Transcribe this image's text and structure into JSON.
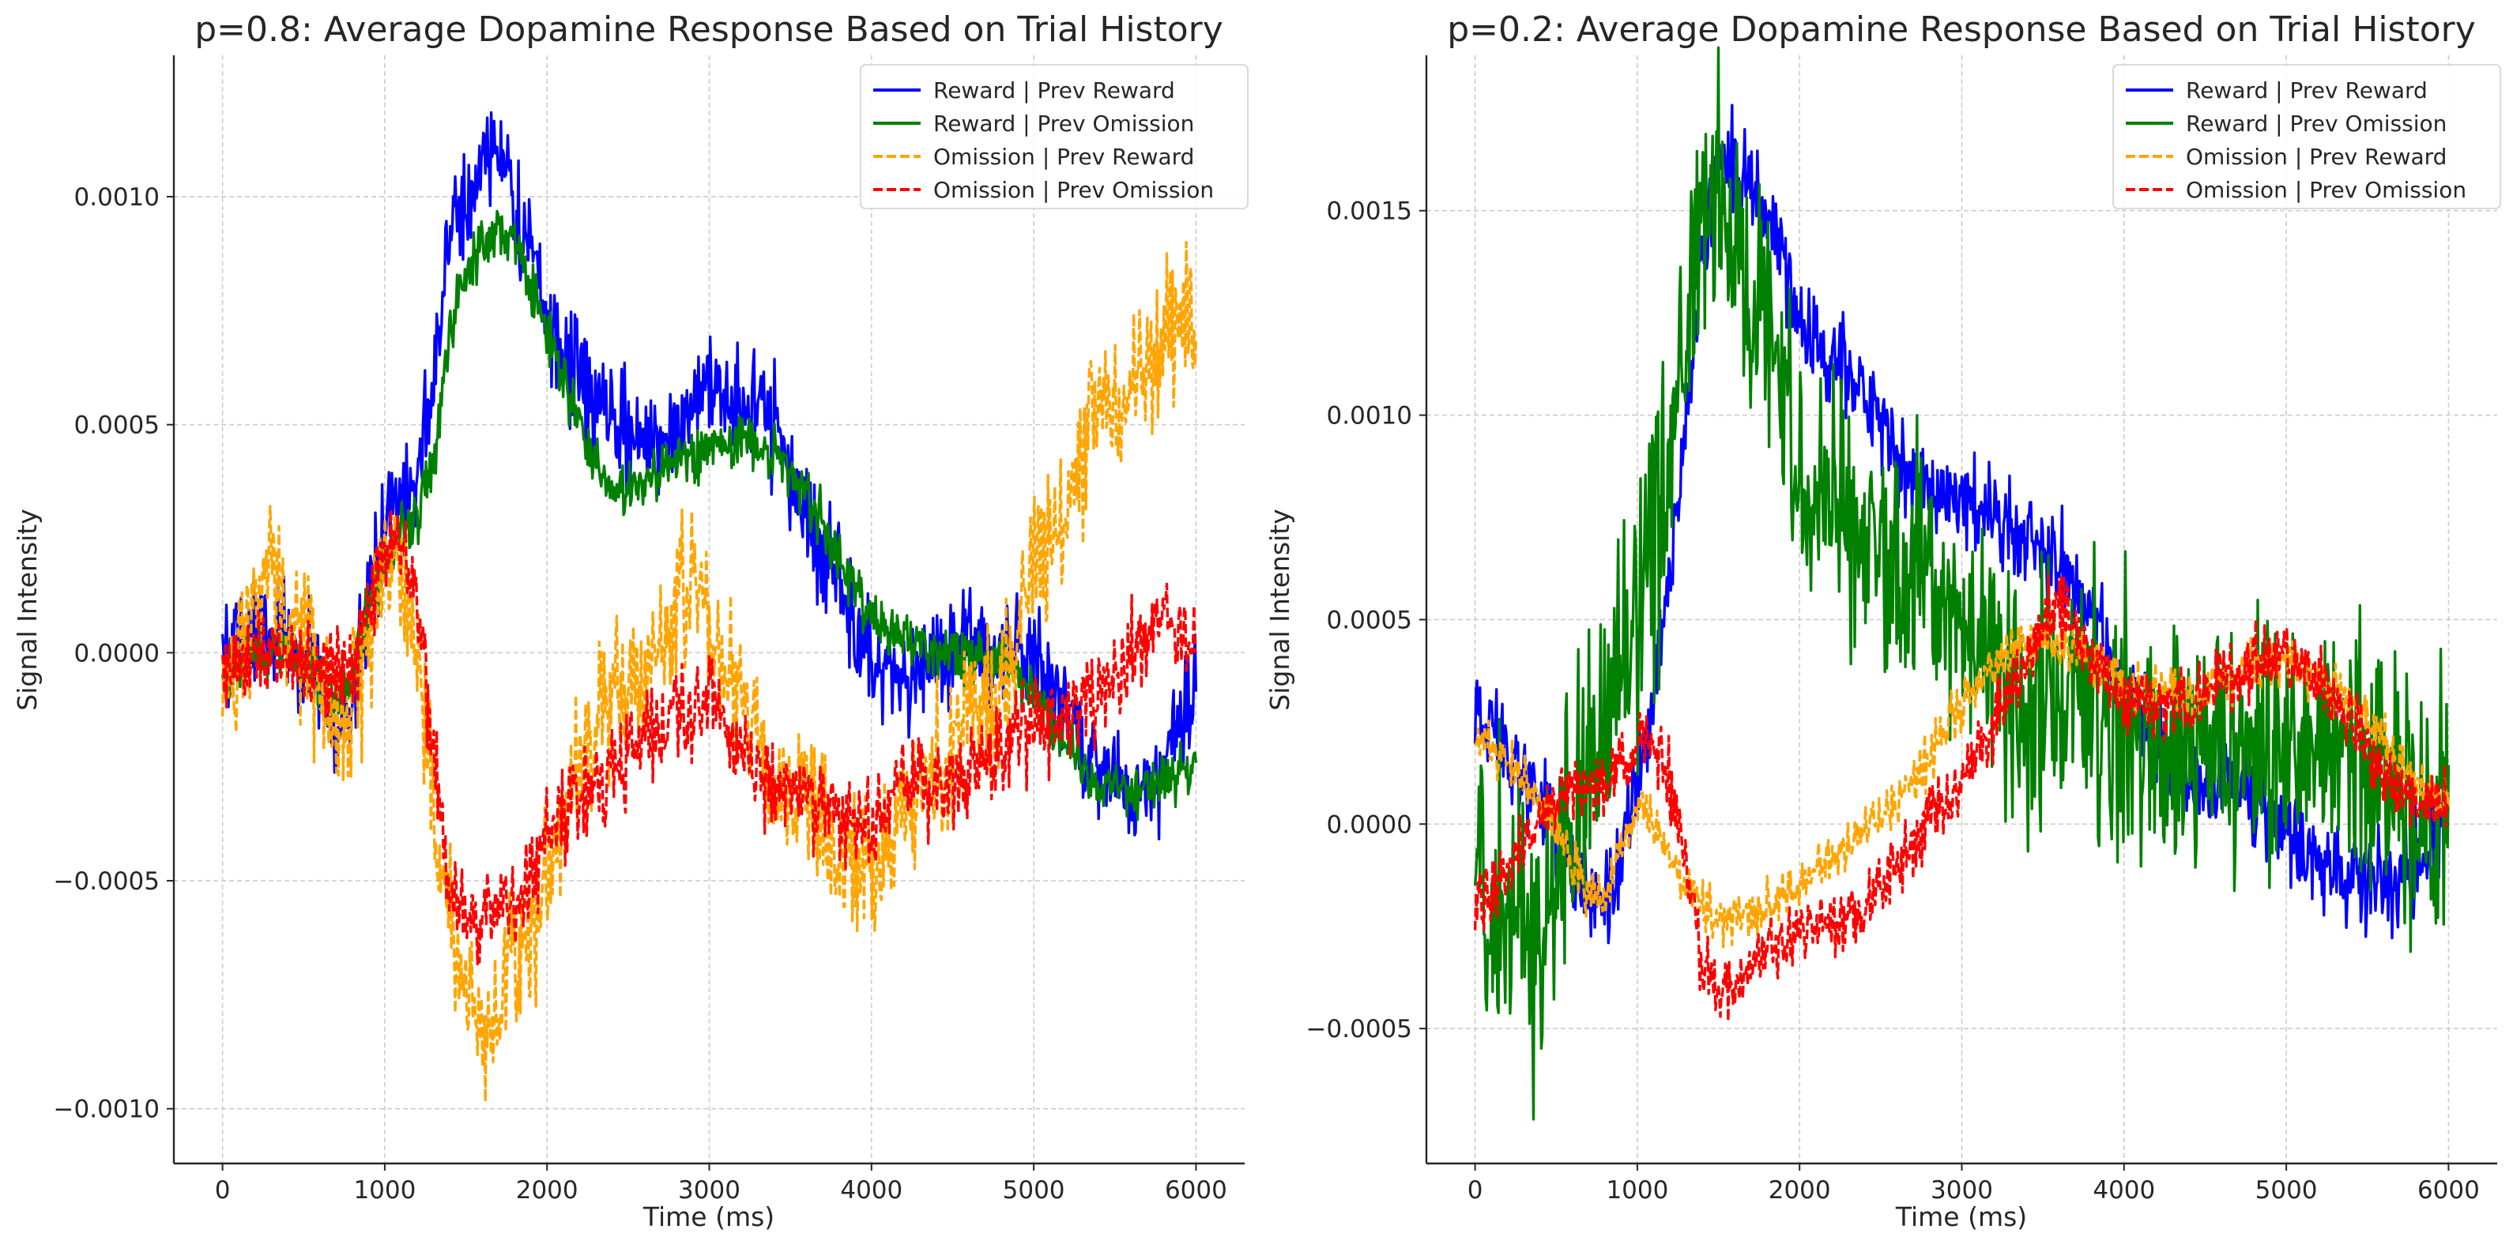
{
  "chart_data": [
    {
      "type": "line",
      "title": "p=0.8: Average Dopamine Response Based on Trial History",
      "xlabel": "Time (ms)",
      "ylabel": "Signal Intensity",
      "xlim": [
        -300,
        6300
      ],
      "ylim": [
        -0.00112,
        0.00131
      ],
      "xticks": [
        0,
        1000,
        2000,
        3000,
        4000,
        5000,
        6000
      ],
      "xtick_labels": [
        "0",
        "1000",
        "2000",
        "3000",
        "4000",
        "5000",
        "6000"
      ],
      "yticks": [
        -0.001,
        -0.0005,
        0,
        0.0005,
        0.001
      ],
      "ytick_labels": [
        "−0.0010",
        "−0.0005",
        "0.0000",
        "0.0005",
        "0.0010"
      ],
      "grid": true,
      "legend_position": "top-right",
      "series": [
        {
          "name": "Reward | Prev Reward",
          "color": "#0000ff",
          "dashed": false,
          "noise": 6e-05,
          "x": [
            0,
            200,
            400,
            600,
            700,
            800,
            900,
            1000,
            1100,
            1200,
            1300,
            1400,
            1500,
            1600,
            1700,
            1800,
            1900,
            2000,
            2200,
            2400,
            2600,
            2800,
            3000,
            3200,
            3400,
            3500,
            3600,
            3800,
            4000,
            4200,
            4400,
            4600,
            4800,
            5000,
            5200,
            5400,
            5600,
            5800,
            6000
          ],
          "y": [
            0,
            5e-05,
            5e-05,
            -5e-05,
            -0.0002,
            -0.0001,
            0.0001,
            0.0003,
            0.00033,
            0.0004,
            0.0006,
            0.0009,
            0.001,
            0.00105,
            0.00115,
            0.00095,
            0.0009,
            0.0007,
            0.0006,
            0.0005,
            0.00045,
            0.0005,
            0.0006,
            0.00055,
            0.0005,
            0.0004,
            0.0003,
            0.00015,
            -3e-05,
            -0.0001,
            0,
            3e-05,
            0,
            0,
            -0.00015,
            -0.00025,
            -0.0003,
            -0.00025,
            -5e-05
          ]
        },
        {
          "name": "Reward | Prev Omission",
          "color": "#008000",
          "dashed": false,
          "noise": 3e-05,
          "x": [
            0,
            200,
            400,
            600,
            700,
            800,
            900,
            1000,
            1100,
            1200,
            1300,
            1400,
            1500,
            1600,
            1700,
            1800,
            1900,
            2000,
            2200,
            2400,
            2600,
            2800,
            3000,
            3200,
            3400,
            3500,
            3600,
            3800,
            4000,
            4200,
            4400,
            4600,
            4800,
            5000,
            5200,
            5400,
            5600,
            5800,
            6000
          ],
          "y": [
            -5e-05,
            0,
            0,
            -5e-05,
            -0.0001,
            -5e-05,
            0.0001,
            0.0002,
            0.00028,
            0.0003,
            0.0004,
            0.0007,
            0.00085,
            0.0009,
            0.00093,
            0.0009,
            0.0008,
            0.0007,
            0.0005,
            0.00035,
            0.00037,
            0.00042,
            0.00045,
            0.00047,
            0.00043,
            0.0004,
            0.00035,
            0.0002,
            8e-05,
            3e-05,
            0,
            0,
            -2e-05,
            -8e-05,
            -0.0002,
            -0.00028,
            -0.0003,
            -0.00028,
            -0.00025
          ]
        },
        {
          "name": "Omission | Prev Reward",
          "color": "#ffa500",
          "dashed": true,
          "noise": 8e-05,
          "x": [
            0,
            200,
            300,
            400,
            500,
            600,
            700,
            800,
            900,
            1000,
            1100,
            1200,
            1300,
            1400,
            1500,
            1600,
            1700,
            1800,
            1900,
            2000,
            2200,
            2400,
            2600,
            2800,
            2900,
            3000,
            3200,
            3400,
            3600,
            3800,
            4000,
            4200,
            4400,
            4600,
            4800,
            5000,
            5200,
            5400,
            5600,
            5800,
            6000
          ],
          "y": [
            -0.0001,
            0.0001,
            0.0002,
            0,
            5e-05,
            -0.0001,
            -0.0002,
            -0.0001,
            5e-05,
            0.0002,
            0.0002,
            0,
            -0.00035,
            -0.0006,
            -0.00075,
            -0.0008,
            -0.0008,
            -0.00065,
            -0.0006,
            -0.0005,
            -0.0002,
            -0.0001,
            -5e-05,
            0.0001,
            0.0002,
            5e-05,
            -0.0001,
            -0.0003,
            -0.0003,
            -0.00045,
            -0.0005,
            -0.00035,
            -0.00025,
            -0.00015,
            -0.0001,
            0.0002,
            0.0003,
            0.00055,
            0.00055,
            0.0007,
            0.00075
          ]
        },
        {
          "name": "Omission | Prev Omission",
          "color": "#ff0000",
          "dashed": true,
          "noise": 5e-05,
          "x": [
            0,
            200,
            400,
            600,
            800,
            900,
            1000,
            1100,
            1200,
            1300,
            1400,
            1500,
            1600,
            1700,
            1800,
            1900,
            2000,
            2200,
            2400,
            2600,
            2800,
            3000,
            3200,
            3400,
            3600,
            3800,
            4000,
            4200,
            4400,
            4600,
            4800,
            5000,
            5200,
            5400,
            5600,
            5800,
            6000
          ],
          "y": [
            -5e-05,
            0,
            0,
            -3e-05,
            -5e-05,
            0.0001,
            0.00022,
            0.00025,
            0.0001,
            -0.0002,
            -0.0005,
            -0.0006,
            -0.0006,
            -0.00055,
            -0.00055,
            -0.0005,
            -0.0004,
            -0.0003,
            -0.00025,
            -0.0002,
            -0.00013,
            -0.0001,
            -0.0002,
            -0.0003,
            -0.0003,
            -0.00035,
            -0.0004,
            -0.00028,
            -0.0003,
            -0.0003,
            -0.0002,
            -0.00015,
            -0.00015,
            -0.0001,
            0,
            0.0001,
            0
          ]
        }
      ]
    },
    {
      "type": "line",
      "title": "p=0.2: Average Dopamine Response Based on Trial History",
      "xlabel": "Time (ms)",
      "ylabel": "Signal Intensity",
      "xlim": [
        -300,
        6300
      ],
      "ylim": [
        -0.00083,
        0.00188
      ],
      "xticks": [
        0,
        1000,
        2000,
        3000,
        4000,
        5000,
        6000
      ],
      "xtick_labels": [
        "0",
        "1000",
        "2000",
        "3000",
        "4000",
        "5000",
        "6000"
      ],
      "yticks": [
        -0.0005,
        0,
        0.0005,
        0.001,
        0.0015
      ],
      "ytick_labels": [
        "−0.0005",
        "0.0000",
        "0.0005",
        "0.0010",
        "0.0015"
      ],
      "grid": true,
      "legend_position": "top-right",
      "series": [
        {
          "name": "Reward | Prev Reward",
          "color": "#0000ff",
          "dashed": false,
          "noise": 6e-05,
          "x": [
            0,
            100,
            200,
            300,
            400,
            500,
            600,
            700,
            800,
            900,
            1000,
            1100,
            1200,
            1300,
            1400,
            1500,
            1600,
            1700,
            1800,
            1900,
            2000,
            2200,
            2400,
            2600,
            2800,
            3000,
            3200,
            3400,
            3600,
            3800,
            4000,
            4200,
            4400,
            4600,
            4800,
            5000,
            5200,
            5400,
            5600,
            5800,
            6000
          ],
          "y": [
            0.0003,
            0.00025,
            0.0002,
            0.0001,
            5e-05,
            0,
            -0.0001,
            -0.0002,
            -0.0002,
            -0.0001,
            0.0001,
            0.0003,
            0.0006,
            0.001,
            0.0014,
            0.0016,
            0.0016,
            0.00155,
            0.0015,
            0.00135,
            0.0012,
            0.00115,
            0.00105,
            0.0009,
            0.0008,
            0.0008,
            0.00075,
            0.0007,
            0.00065,
            0.0005,
            0.0003,
            0.0002,
            0.0001,
            0.0001,
            5e-05,
            0,
            -0.0001,
            -0.00015,
            -0.00015,
            -0.0001,
            5e-05
          ]
        },
        {
          "name": "Reward | Prev Omission",
          "color": "#008000",
          "dashed": false,
          "noise": 0.00016,
          "x": [
            0,
            100,
            200,
            300,
            400,
            500,
            600,
            700,
            800,
            900,
            1000,
            1100,
            1200,
            1300,
            1400,
            1500,
            1600,
            1700,
            1800,
            1900,
            2000,
            2200,
            2400,
            2600,
            2800,
            3000,
            3200,
            3400,
            3600,
            3800,
            4000,
            4200,
            4400,
            4600,
            4800,
            5000,
            5200,
            5400,
            5600,
            5800,
            6000
          ],
          "y": [
            -0.0001,
            -0.00015,
            -0.0002,
            -0.0002,
            -0.00035,
            -0.0001,
            0,
            0.0001,
            0.0002,
            0.00035,
            0.0005,
            0.0007,
            0.0009,
            0.0012,
            0.00145,
            0.0015,
            0.0014,
            0.0013,
            0.00125,
            0.0011,
            0.0009,
            0.0008,
            0.0007,
            0.0006,
            0.0006,
            0.0005,
            0.0004,
            0.0003,
            0.0003,
            0.0003,
            0.00025,
            0.0002,
            0.0002,
            0.00015,
            0.00015,
            0.0002,
            0.0002,
            0.00015,
            0.0001,
            0,
            5e-05
          ]
        },
        {
          "name": "Omission | Prev Reward",
          "color": "#ffa500",
          "dashed": true,
          "noise": 3e-05,
          "x": [
            0,
            100,
            200,
            300,
            400,
            500,
            600,
            700,
            800,
            900,
            1000,
            1100,
            1200,
            1300,
            1400,
            1500,
            1600,
            1700,
            1800,
            1900,
            2000,
            2200,
            2400,
            2600,
            2800,
            3000,
            3200,
            3400,
            3600,
            3800,
            4000,
            4200,
            4400,
            4600,
            4800,
            5000,
            5200,
            5400,
            5600,
            5800,
            6000
          ],
          "y": [
            0.00022,
            0.00018,
            0.00015,
            0.0001,
            5e-05,
            0,
            -0.0001,
            -0.00018,
            -0.00018,
            -5e-05,
            5e-05,
            0,
            -0.0001,
            -0.00015,
            -0.0002,
            -0.00022,
            -0.00022,
            -0.00022,
            -0.0002,
            -0.00018,
            -0.00015,
            -8e-05,
            -2e-05,
            5e-05,
            0.00015,
            0.0003,
            0.0004,
            0.00045,
            0.00045,
            0.0004,
            0.00035,
            0.00032,
            0.0003,
            0.00035,
            0.0004,
            0.0004,
            0.00035,
            0.0003,
            0.0002,
            0.0001,
            5e-05
          ]
        },
        {
          "name": "Omission | Prev Omission",
          "color": "#ff0000",
          "dashed": true,
          "noise": 4e-05,
          "x": [
            0,
            100,
            200,
            300,
            400,
            500,
            600,
            700,
            800,
            900,
            1000,
            1100,
            1200,
            1300,
            1400,
            1500,
            1600,
            1700,
            1800,
            1900,
            2000,
            2200,
            2400,
            2600,
            2800,
            3000,
            3200,
            3400,
            3600,
            3800,
            4000,
            4200,
            4400,
            4600,
            4800,
            5000,
            5200,
            5400,
            5600,
            5800,
            6000
          ],
          "y": [
            -0.0002,
            -0.00015,
            -0.0001,
            -5e-05,
            0,
            5e-05,
            0.0001,
            0.0001,
            0.0001,
            0.00015,
            0.0002,
            0.0002,
            0.0001,
            -0.0001,
            -0.00035,
            -0.0004,
            -0.0004,
            -0.00035,
            -0.00032,
            -0.0003,
            -0.00025,
            -0.00025,
            -0.0002,
            -0.0001,
            0,
            0.0001,
            0.00025,
            0.0004,
            0.00055,
            0.0004,
            0.0003,
            0.0003,
            0.0003,
            0.00035,
            0.0004,
            0.0004,
            0.00035,
            0.00025,
            0.0001,
            5e-05,
            3e-05
          ]
        }
      ]
    }
  ]
}
